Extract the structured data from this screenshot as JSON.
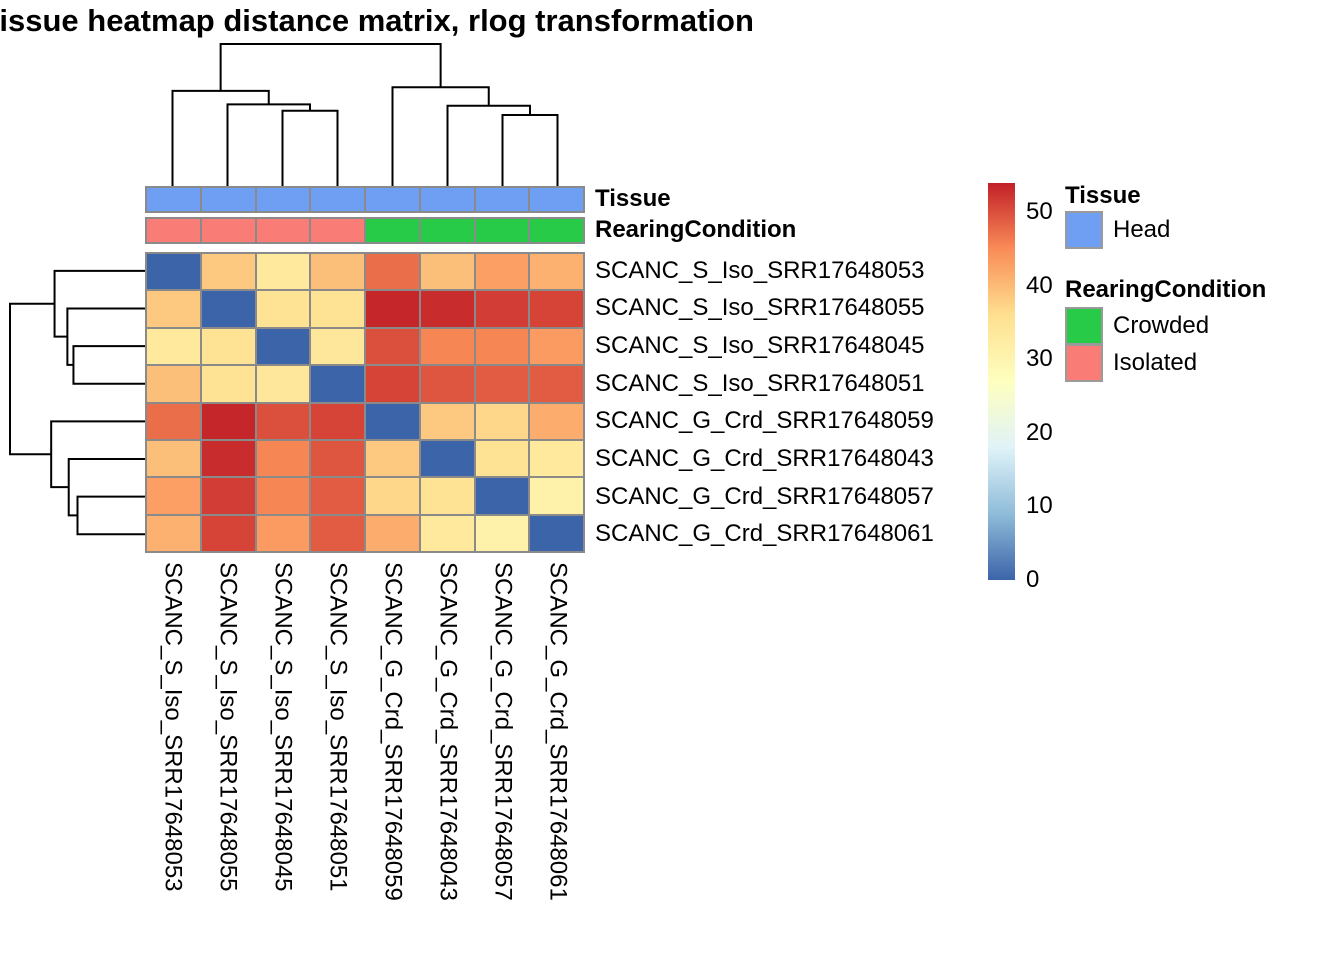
{
  "chart_data": {
    "type": "heatmap",
    "title": "Tissue heatmap distance matrix, rlog transformation",
    "rows": [
      "SCANC_S_Iso_SRR17648053",
      "SCANC_S_Iso_SRR17648055",
      "SCANC_S_Iso_SRR17648045",
      "SCANC_S_Iso_SRR17648051",
      "SCANC_G_Crd_SRR17648059",
      "SCANC_G_Crd_SRR17648043",
      "SCANC_G_Crd_SRR17648057",
      "SCANC_G_Crd_SRR17648061"
    ],
    "columns": [
      "SCANC_S_Iso_SRR17648053",
      "SCANC_S_Iso_SRR17648055",
      "SCANC_S_Iso_SRR17648045",
      "SCANC_S_Iso_SRR17648051",
      "SCANC_G_Crd_SRR17648059",
      "SCANC_G_Crd_SRR17648043",
      "SCANC_G_Crd_SRR17648057",
      "SCANC_G_Crd_SRR17648061"
    ],
    "values": [
      [
        0,
        38.5,
        33.5,
        39.5,
        47.5,
        39.5,
        43,
        41
      ],
      [
        38.5,
        0,
        35,
        35,
        53.5,
        53,
        51.5,
        51
      ],
      [
        33.5,
        35,
        0,
        34,
        50,
        45.5,
        45.5,
        43.5
      ],
      [
        39.5,
        35,
        34,
        0,
        51,
        49.5,
        49,
        49
      ],
      [
        47.5,
        53.5,
        50,
        51,
        0,
        38.5,
        37,
        41.5
      ],
      [
        39.5,
        53,
        45.5,
        49.5,
        38.5,
        0,
        35,
        33.5
      ],
      [
        43,
        51.5,
        45.5,
        49,
        37,
        35,
        0,
        31
      ],
      [
        41,
        51,
        43.5,
        49,
        41.5,
        33.5,
        31,
        0
      ]
    ],
    "color_scale": {
      "min": 0,
      "max": 54,
      "stops": [
        {
          "value": 0,
          "color": "#3C64A9"
        },
        {
          "value": 9,
          "color": "#8FBCD9"
        },
        {
          "value": 18,
          "color": "#E0F3F8"
        },
        {
          "value": 27,
          "color": "#FEFFBF"
        },
        {
          "value": 36,
          "color": "#FEE090"
        },
        {
          "value": 45,
          "color": "#FA8C58"
        },
        {
          "value": 54,
          "color": "#C22027"
        }
      ]
    },
    "colorbar_ticks": [
      0,
      10,
      20,
      30,
      40,
      50
    ],
    "grid_line_color": "#8a8a8a",
    "column_annotations": [
      {
        "label": "Tissue",
        "values": [
          "Head",
          "Head",
          "Head",
          "Head",
          "Head",
          "Head",
          "Head",
          "Head"
        ],
        "colors": {
          "Head": "#6E9FF3"
        }
      },
      {
        "label": "RearingCondition",
        "values": [
          "Isolated",
          "Isolated",
          "Isolated",
          "Isolated",
          "Crowded",
          "Crowded",
          "Crowded",
          "Crowded"
        ],
        "colors": {
          "Crowded": "#27CB47",
          "Isolated": "#FA7C76"
        }
      }
    ],
    "legends": [
      {
        "title": "Tissue",
        "items": [
          {
            "label": "Head",
            "color": "#6E9FF3"
          }
        ]
      },
      {
        "title": "RearingCondition",
        "items": [
          {
            "label": "Crowded",
            "color": "#27CB47"
          },
          {
            "label": "Isolated",
            "color": "#FA7C76"
          }
        ]
      }
    ],
    "clustering": {
      "note": "same dendrogram applied to rows and columns",
      "merges": [
        {
          "a": "L2",
          "b": "L3",
          "h": 0.53
        },
        {
          "a": "L1",
          "b": "M0",
          "h": 0.575
        },
        {
          "a": "L0",
          "b": "M1",
          "h": 0.67
        },
        {
          "a": "L6",
          "b": "L7",
          "h": 0.5
        },
        {
          "a": "L5",
          "b": "M3",
          "h": 0.565
        },
        {
          "a": "L4",
          "b": "M4",
          "h": 0.695
        },
        {
          "a": "M2",
          "b": "M5",
          "h": 1.0
        }
      ]
    }
  }
}
